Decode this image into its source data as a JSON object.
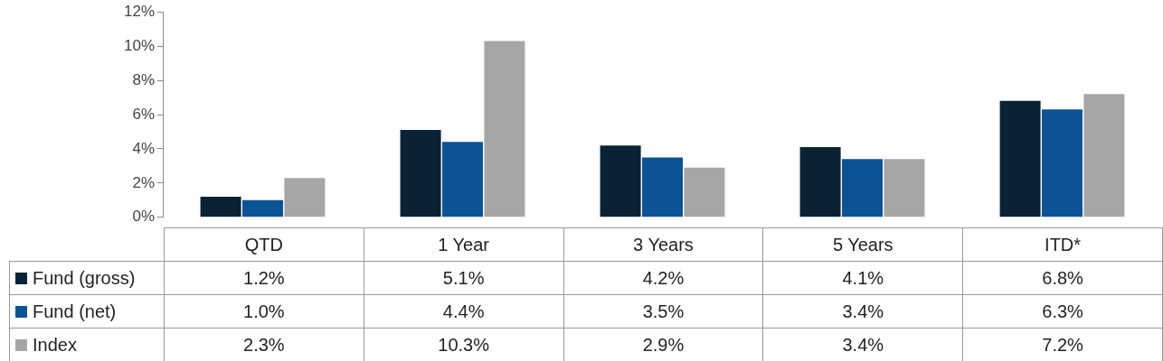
{
  "chart_data": {
    "type": "bar",
    "categories": [
      "QTD",
      "1 Year",
      "3 Years",
      "5 Years",
      "ITD*"
    ],
    "series": [
      {
        "name": "Fund (gross)",
        "color": "#0a2236",
        "values": [
          1.2,
          5.1,
          4.2,
          4.1,
          6.8
        ],
        "value_labels": [
          "1.2%",
          "5.1%",
          "4.2%",
          "4.1%",
          "6.8%"
        ]
      },
      {
        "name": "Fund (net)",
        "color": "#0b5394",
        "values": [
          1.0,
          4.4,
          3.5,
          3.4,
          6.3
        ],
        "value_labels": [
          "1.0%",
          "4.4%",
          "3.5%",
          "3.4%",
          "6.3%"
        ]
      },
      {
        "name": "Index",
        "color": "#a6a6a6",
        "values": [
          2.3,
          10.3,
          2.9,
          3.4,
          7.2
        ],
        "value_labels": [
          "2.3%",
          "10.3%",
          "2.9%",
          "3.4%",
          "7.2%"
        ]
      }
    ],
    "ylim": [
      0,
      12
    ],
    "yticks": [
      {
        "value": 0,
        "label": "0%"
      },
      {
        "value": 2,
        "label": "2%"
      },
      {
        "value": 4,
        "label": "4%"
      },
      {
        "value": 6,
        "label": "6%"
      },
      {
        "value": 8,
        "label": "8%"
      },
      {
        "value": 10,
        "label": "10%"
      },
      {
        "value": 12,
        "label": "12%"
      }
    ],
    "grid": false,
    "legend": "bottom"
  }
}
